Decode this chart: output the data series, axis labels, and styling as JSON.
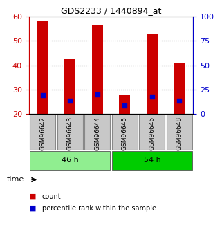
{
  "title": "GDS2233 / 1440894_at",
  "samples": [
    "GSM96642",
    "GSM96643",
    "GSM96644",
    "GSM96645",
    "GSM96646",
    "GSM96648"
  ],
  "count_values": [
    58,
    42.5,
    56.5,
    28,
    53,
    41
  ],
  "percentile_values": [
    27.5,
    25.5,
    28,
    23.5,
    27,
    25.5
  ],
  "ylim_left": [
    20,
    60
  ],
  "ylim_right": [
    0,
    100
  ],
  "yticks_left": [
    20,
    30,
    40,
    50,
    60
  ],
  "yticks_right": [
    0,
    25,
    50,
    75,
    100
  ],
  "groups": [
    {
      "label": "46 h",
      "indices": [
        0,
        1,
        2
      ],
      "color": "#90EE90"
    },
    {
      "label": "54 h",
      "indices": [
        3,
        4,
        5
      ],
      "color": "#00CC00"
    }
  ],
  "bar_color": "#CC0000",
  "dot_color": "#0000CC",
  "bar_width": 0.4,
  "grid_color": "#000000",
  "left_tick_color": "#CC0000",
  "right_tick_color": "#0000CC",
  "bg_color": "#FFFFFF",
  "sample_bg_color": "#C8C8C8",
  "legend_count_color": "#CC0000",
  "legend_pct_color": "#0000CC"
}
